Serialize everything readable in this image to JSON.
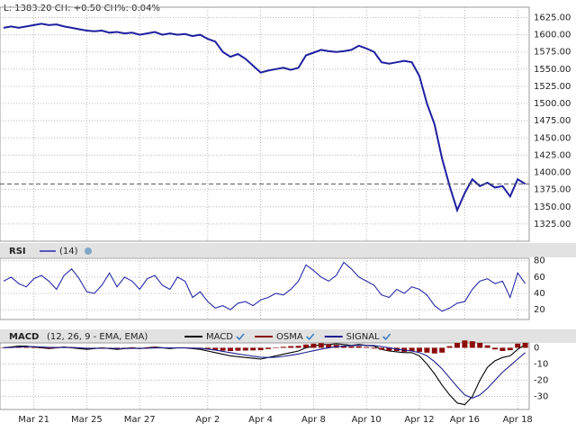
{
  "chart_data": [
    {
      "type": "line",
      "title": "L: 1383.20 CH: +0.50 CH%: 0.04%",
      "series": [
        {
          "color": "#1f1fa0",
          "values": [
            1610,
            1612,
            1610,
            1612,
            1614,
            1616,
            1614,
            1615,
            1612,
            1610,
            1608,
            1606,
            1605,
            1606,
            1603,
            1604,
            1602,
            1603,
            1600,
            1602,
            1604,
            1600,
            1602,
            1600,
            1601,
            1598,
            1600,
            1594,
            1590,
            1575,
            1568,
            1572,
            1565,
            1555,
            1545,
            1548,
            1550,
            1552,
            1549,
            1552,
            1570,
            1574,
            1578,
            1576,
            1575,
            1576,
            1578,
            1584,
            1580,
            1575,
            1560,
            1558,
            1560,
            1562,
            1560,
            1540,
            1500,
            1470,
            1420,
            1380,
            1345,
            1370,
            1390,
            1380,
            1385,
            1378,
            1380,
            1365,
            1390,
            1383.2
          ]
        }
      ],
      "ylim": [
        1300,
        1640
      ],
      "yticks": [
        {
          "value": 1325,
          "label": "1325.00"
        },
        {
          "value": 1350,
          "label": "1350.00"
        },
        {
          "value": 1375,
          "label": "1375.00"
        },
        {
          "value": 1400,
          "label": "1400.00"
        },
        {
          "value": 1425,
          "label": "1425.00"
        },
        {
          "value": 1450,
          "label": "1450.00"
        },
        {
          "value": 1475,
          "label": "1475.00"
        },
        {
          "value": 1500,
          "label": "1500.00"
        },
        {
          "value": 1525,
          "label": "1525.00"
        },
        {
          "value": 1550,
          "label": "1550.00"
        },
        {
          "value": 1575,
          "label": "1575.00"
        },
        {
          "value": 1600,
          "label": "1600.00"
        },
        {
          "value": 1625,
          "label": "1625.00"
        }
      ],
      "grid": true
    },
    {
      "type": "line",
      "title": "RSI",
      "series": [
        {
          "name": "(14)",
          "color": "#2a2aa8",
          "values": [
            55,
            60,
            52,
            48,
            58,
            62,
            55,
            45,
            62,
            70,
            58,
            42,
            40,
            50,
            65,
            48,
            60,
            55,
            45,
            58,
            62,
            50,
            45,
            60,
            55,
            35,
            42,
            30,
            22,
            25,
            20,
            28,
            30,
            25,
            32,
            35,
            40,
            38,
            45,
            55,
            75,
            68,
            60,
            55,
            62,
            78,
            70,
            60,
            55,
            50,
            38,
            35,
            45,
            40,
            48,
            45,
            38,
            25,
            18,
            22,
            28,
            30,
            45,
            55,
            58,
            52,
            55,
            35,
            65,
            52
          ]
        }
      ],
      "ylim": [
        8,
        83
      ],
      "yticks": [
        20,
        40,
        60,
        80
      ],
      "grid": true
    },
    {
      "type": "line",
      "title": "MACD",
      "subtitle": "(12, 26, 9 - EMA, EMA)",
      "categories": [
        null,
        null,
        null,
        null,
        "Mar 21",
        null,
        null,
        null,
        null,
        null,
        null,
        "Mar 25",
        null,
        null,
        null,
        null,
        null,
        null,
        "Mar 27",
        null,
        null,
        null,
        null,
        null,
        null,
        null,
        null,
        "Apr 2",
        null,
        null,
        null,
        null,
        null,
        null,
        "Apr 4",
        null,
        null,
        null,
        null,
        null,
        null,
        "Apr 8",
        null,
        null,
        null,
        null,
        null,
        null,
        "Apr 10",
        null,
        null,
        null,
        null,
        null,
        null,
        "Apr 12",
        null,
        null,
        null,
        null,
        null,
        "Apr 16",
        null,
        null,
        null,
        null,
        null,
        null,
        "Apr 18",
        null
      ],
      "series": [
        {
          "name": "MACD",
          "color": "#000000",
          "values": [
            0,
            0.5,
            1,
            1,
            0.5,
            0,
            -0.5,
            0,
            0.5,
            0,
            -0.5,
            -1,
            -0.5,
            0,
            -0.5,
            -1,
            -0.5,
            0,
            -0.5,
            0,
            0.5,
            0,
            -0.5,
            0,
            0,
            -0.5,
            -1,
            -2,
            -3,
            -4,
            -5,
            -5.5,
            -6,
            -6.5,
            -7,
            -6,
            -5,
            -4,
            -3,
            -2,
            0,
            1,
            2,
            2,
            2.5,
            2,
            1.5,
            2,
            1.5,
            1,
            -1,
            -2,
            -2.5,
            -3,
            -3,
            -5,
            -10,
            -16,
            -23,
            -29,
            -34,
            -35,
            -30,
            -20,
            -12,
            -8,
            -6,
            -5,
            -1,
            2
          ]
        },
        {
          "name": "OSMA",
          "color": "#8b0a0a",
          "type": "bar",
          "values": [
            0.3,
            0.4,
            0.5,
            0.4,
            0.2,
            -0.2,
            -0.5,
            -0.2,
            0.2,
            -0.1,
            -0.4,
            -0.6,
            -0.2,
            0.2,
            -0.1,
            -0.4,
            -0.1,
            0.3,
            0,
            0.3,
            0.5,
            0.1,
            -0.3,
            0.1,
            0.1,
            -0.2,
            -0.5,
            -1,
            -1.5,
            -1.8,
            -2,
            -1.8,
            -1.7,
            -1.6,
            -1.5,
            -0.8,
            0,
            0.6,
            1,
            1.2,
            2,
            2.5,
            2.8,
            2.2,
            1.8,
            1.2,
            0.8,
            0.9,
            0.5,
            -0.5,
            -1.2,
            -1.8,
            -2,
            -2.5,
            -2.2,
            -2.5,
            -3,
            -3.5,
            -3,
            1,
            3,
            4.5,
            4,
            3,
            1.5,
            -1,
            -2,
            -1.5,
            2.5,
            3
          ]
        },
        {
          "name": "SIGNAL",
          "color": "#1f1f8f",
          "values": [
            0,
            0.2,
            0.5,
            0.7,
            0.7,
            0.5,
            0.3,
            0.2,
            0.3,
            0.2,
            0,
            -0.3,
            -0.4,
            -0.3,
            -0.3,
            -0.5,
            -0.5,
            -0.4,
            -0.4,
            -0.3,
            -0.1,
            0,
            -0.1,
            -0.1,
            -0.1,
            -0.2,
            -0.4,
            -0.8,
            -1.4,
            -2.2,
            -3,
            -3.8,
            -4.5,
            -5.2,
            -5.8,
            -6,
            -5.8,
            -5.3,
            -4.6,
            -3.8,
            -2.8,
            -1.8,
            -0.8,
            0,
            0.7,
            1.1,
            1.3,
            1.5,
            1.5,
            1.4,
            0.8,
            0,
            -0.8,
            -1.5,
            -2,
            -3,
            -5,
            -8.5,
            -13,
            -18.5,
            -24,
            -29,
            -31,
            -29,
            -25,
            -20,
            -15,
            -11,
            -7,
            -3
          ]
        }
      ],
      "ylim": [
        -38,
        3
      ],
      "yticks": [
        0,
        -10,
        -20,
        -30
      ],
      "grid": true
    }
  ]
}
